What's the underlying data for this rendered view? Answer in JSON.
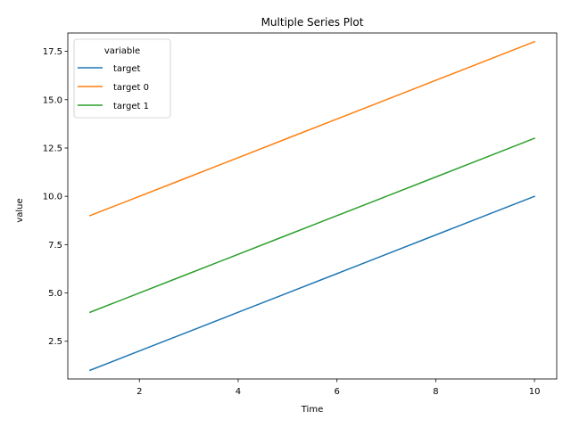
{
  "chart_data": {
    "type": "line",
    "title": "Multiple Series Plot",
    "xlabel": "Time",
    "ylabel": "value",
    "x": [
      1,
      2,
      3,
      4,
      5,
      6,
      7,
      8,
      9,
      10
    ],
    "xlim": [
      0.55,
      10.45
    ],
    "ylim": [
      0.55,
      18.45
    ],
    "xticks": [
      2,
      4,
      6,
      8,
      10
    ],
    "yticks": [
      2.5,
      5.0,
      7.5,
      10.0,
      12.5,
      15.0,
      17.5
    ],
    "xtick_labels": [
      "2",
      "4",
      "6",
      "8",
      "10"
    ],
    "ytick_labels": [
      "2.5",
      "5.0",
      "7.5",
      "10.0",
      "12.5",
      "15.0",
      "17.5"
    ],
    "grid": false,
    "legend": {
      "title": "variable",
      "position": "top-left"
    },
    "series": [
      {
        "name": "target",
        "color": "#1f77b4",
        "values": [
          1,
          2,
          3,
          4,
          5,
          6,
          7,
          8,
          9,
          10
        ]
      },
      {
        "name": "target 0",
        "color": "#ff7f0e",
        "values": [
          9,
          10,
          11,
          12,
          13,
          14,
          15,
          16,
          17,
          18
        ]
      },
      {
        "name": "target 1",
        "color": "#2ca02c",
        "values": [
          4,
          5,
          6,
          7,
          8,
          9,
          10,
          11,
          12,
          13
        ]
      }
    ]
  }
}
